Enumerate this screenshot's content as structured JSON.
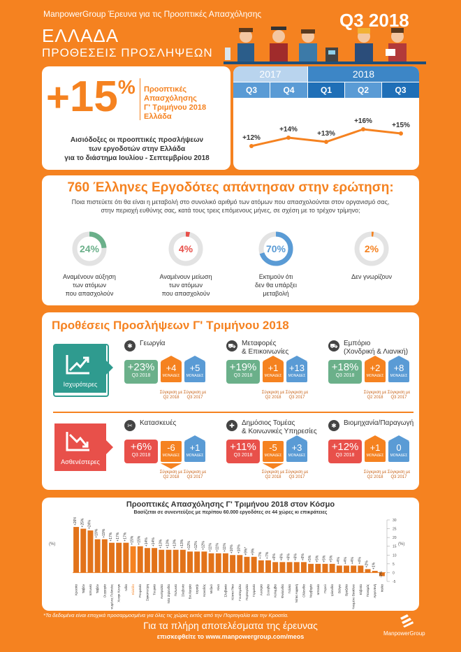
{
  "header": {
    "survey_title": "ManpowerGroup Έρευνα για τις Προοπτικές Απασχόλησης",
    "country": "ΕΛΛΑΔΑ",
    "subtitle": "ΠΡΟΘΕΣΕΙΣ ΠΡΟΣΛΗΨΕΩΝ",
    "quarter": "Q3 2018"
  },
  "outlook": {
    "sign": "+",
    "value": "15",
    "unit": "%",
    "label_lines": [
      "Προοπτικές",
      "Απασχόλησης",
      "Γ' Τριμήνου 2018",
      "Ελλάδα"
    ],
    "desc_lines": [
      "Αισιόδοξες οι προοπτικές προσλήψεων",
      "των εργοδοτών στην Ελλάδα",
      "για το διάστημα Ιουλίου - Σεπτεμβρίου 2018"
    ]
  },
  "timeline": {
    "years": [
      "2017",
      "2018"
    ],
    "quarters": [
      "Q3",
      "Q4",
      "Q1",
      "Q2",
      "Q3"
    ],
    "values": [
      12,
      14,
      13,
      16,
      15
    ],
    "labels": [
      "+12%",
      "+14%",
      "+13%",
      "+16%",
      "+15%"
    ]
  },
  "survey": {
    "title": "760 Έλληνες Εργοδότες απάντησαν στην ερώτηση:",
    "question_line1": "Ποια πιστεύετε ότι θα είναι η μεταβολή στο συνολικό αριθμό των ατόμων που απασχολούνται στον οργανισμό σας,",
    "question_line2": "στην περιοχή ευθύνης σας, κατά τους τρεις επόμενους μήνες, σε σχέση με το τρέχον τρίμηνο;",
    "donuts": [
      {
        "pct": 24,
        "label": "24%",
        "color": "#6bb08a",
        "caption": [
          "Αναμένουν αύξηση",
          "των ατόμων",
          "που απασχολούν"
        ]
      },
      {
        "pct": 4,
        "label": "4%",
        "color": "#e8504a",
        "caption": [
          "Αναμένουν μείωση",
          "των ατόμων",
          "που απασχολούν"
        ]
      },
      {
        "pct": 70,
        "label": "70%",
        "color": "#5a9bd5",
        "caption": [
          "Εκτιμούν ότι",
          "δεν θα υπάρξει",
          "μεταβολή"
        ]
      },
      {
        "pct": 2,
        "label": "2%",
        "color": "#f58220",
        "caption": [
          "Δεν γνωρίζουν"
        ]
      }
    ]
  },
  "sectors": {
    "title": "Προθέσεις Προσλήψεων Γ' Τριμήνου 2018",
    "strongest_label": "Ισχυρότερες",
    "weakest_label": "Ασθενέστερες",
    "q_label": "Q3 2018",
    "units_label": "ΜΟΝΑΔΕΣ",
    "cmp_q2": "Σύγκριση με Q2 2018",
    "cmp_q2_line1": "Σύγκριση με",
    "cmp_q2_line2": "Q2 2018",
    "cmp_q3_line1": "Σύγκριση με",
    "cmp_q3_line2": "Q3 2017",
    "strong": [
      {
        "name": [
          "Γεωργία"
        ],
        "icon": "gear-icon",
        "value": "+23%",
        "q2": "+4",
        "q3": "+5"
      },
      {
        "name": [
          "Μεταφορές",
          "& Επικοινωνίες"
        ],
        "icon": "car-icon",
        "value": "+19%",
        "q2": "+1",
        "q3": "+13"
      },
      {
        "name": [
          "Εμπόριο",
          "(Χονδρική & Λιανική)"
        ],
        "icon": "cart-icon",
        "value": "+18%",
        "q2": "+2",
        "q3": "+8"
      }
    ],
    "weak": [
      {
        "name": [
          "Κατασκευές"
        ],
        "icon": "tools-icon",
        "value": "+6%",
        "q2": "-6",
        "q3": "+1"
      },
      {
        "name": [
          "Δημόσιος Τομέας",
          "& Κοινωνικές Υπηρεσίες"
        ],
        "icon": "plus-icon",
        "value": "+11%",
        "q2": "-5",
        "q3": "+3"
      },
      {
        "name": [
          "Βιομηχανία/Παραγωγή"
        ],
        "icon": "gears-icon",
        "value": "+12%",
        "q2": "+1",
        "q3": "0"
      }
    ]
  },
  "world": {
    "title": "Προοπτικές Απασχόλησης Γ' Τριμήνου 2018 στον Κόσμο",
    "subtitle": "Βασίζεται σε συνεντεύξεις με περίπου 60.000 εργοδότες σε 44 χώρες κι επικράτειες",
    "footnote": "*Τα δεδομένα είναι εποχικά προσαρμοσμένα για όλες τις χώρες εκτός από την Πορτογαλία και την Κροατία.",
    "axis_unit": "(%)"
  },
  "chart_data": {
    "type": "bar",
    "title": "Προοπτικές Απασχόλησης Γ' Τριμήνου 2018 στον Κόσμο",
    "ylabel": "(%)",
    "ylim": [
      -5,
      30
    ],
    "highlight": "Ελλάδα",
    "categories": [
      "Κροατία",
      "Ταϊβάν",
      "Ιαπωνία",
      "Ταϊβάν",
      "Ουγγαρία",
      "Ηνωμένες Πολιτείες",
      "Χονγκ Κονγκ",
      "Ινδία",
      "Ελλάδα",
      "Ρουμανία",
      "Σιγκαπούρη",
      "Τουρκία",
      "Αυστραλία",
      "Νέα Ζηλανδία",
      "Πολωνία",
      "Σλοβενία",
      "Βουλγαρία",
      "Ισραήλ",
      "Καναδάς",
      "Μεξικό",
      "Κίνα",
      "Σλοβακία",
      "Κόστα Ρίκα",
      "Γουατεμάλα",
      "Πορτογαλία",
      "Γερμανία",
      "Αυστρία",
      "Σουηδία",
      "Κολομβία",
      "Φινλανδία",
      "Γαλλία",
      "Νότια Αφρική",
      "Ολλανδία",
      "Νορβηγία",
      "Ισπανία",
      "Περού",
      "Ιρλανδία",
      "Βέλγιο",
      "Βραζιλία",
      "Ηνωμένο Βασίλειο",
      "Ελβετία",
      "Παναμάς",
      "Αργεντινή",
      "Ιταλία"
    ],
    "values": [
      26,
      25,
      24,
      19,
      19,
      17,
      17,
      17,
      15,
      15,
      14,
      14,
      13,
      13,
      13,
      13,
      12,
      12,
      12,
      11,
      11,
      11,
      10,
      10,
      9,
      9,
      7,
      7,
      6,
      6,
      6,
      6,
      6,
      5,
      5,
      5,
      5,
      4,
      4,
      4,
      4,
      2,
      1,
      -2
    ],
    "labels": [
      "+26%*",
      "+25%",
      "+24%",
      "+19%",
      "+19%",
      "+17%",
      "+17%",
      "+17%",
      "+15%",
      "+15%",
      "+14%",
      "+14%",
      "+13%",
      "+13%",
      "+13%",
      "+13%",
      "+12%",
      "+12%",
      "+12%",
      "+11%",
      "+11%",
      "+11%",
      "+10%",
      "+10%",
      "+9%*",
      "+9%",
      "+7%",
      "+7%",
      "+6%",
      "+6%",
      "+6%",
      "+6%",
      "+6%",
      "+5%",
      "+5%",
      "+5%",
      "+5%",
      "+4%",
      "+4%",
      "+4%",
      "+4%",
      "+2%",
      "+1%",
      "-2%"
    ],
    "y_ticks": [
      -5,
      0,
      5,
      10,
      15,
      20,
      25,
      30
    ]
  },
  "footer": {
    "cta": "Για τα πλήρη αποτελέσματα της έρευνας",
    "link": "επισκεφθείτε το www.manpowergroup.com/meos",
    "brand": "ManpowerGroup"
  },
  "colors": {
    "orange": "#f58220",
    "green": "#6bb08a",
    "red": "#e8504a",
    "blue": "#5a9bd5",
    "teal": "#2f9b8f",
    "darkblue": "#1f6fb7"
  }
}
